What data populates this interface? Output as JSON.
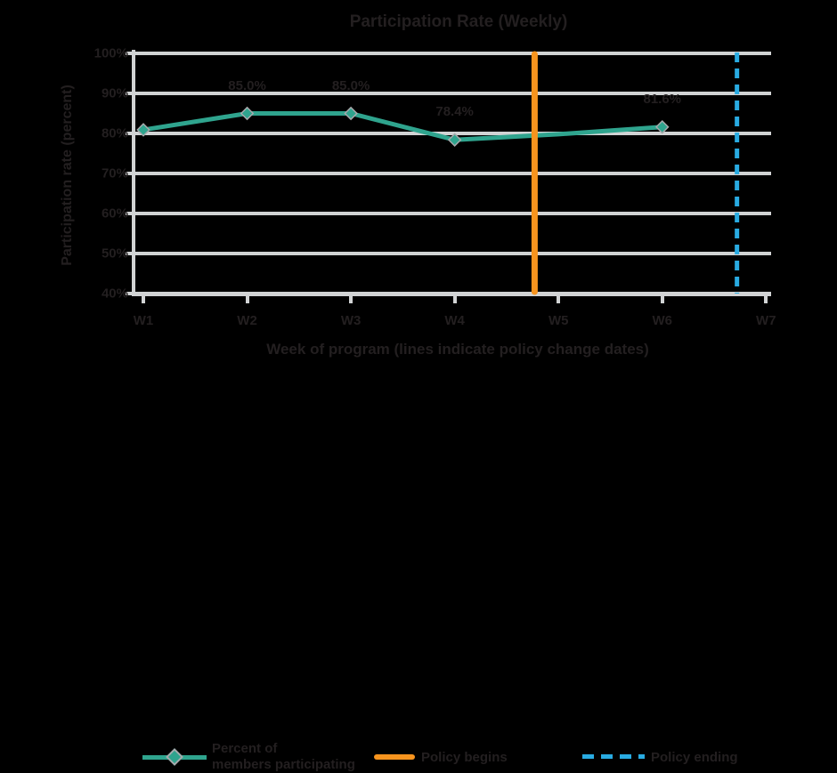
{
  "page": {
    "background": "#000000",
    "text_color": "#231F20"
  },
  "title": "Participation Rate (Weekly)",
  "axes": {
    "y_title": "Participation rate (percent)",
    "x_title": "Week of program (lines indicate policy change dates)",
    "y_tick_labels": [
      "100%",
      "90%",
      "80%",
      "70%",
      "60%",
      "50%",
      "40%"
    ],
    "x_tick_labels": [
      "W1",
      "W2",
      "W3",
      "W4",
      "W5",
      "W6",
      "W7"
    ]
  },
  "legend": {
    "series_label_line1": "Percent of",
    "series_label_line2": "members participating",
    "orange_label": "Policy begins",
    "blue_label": "Policy ending"
  },
  "colors": {
    "teal": "#2FA48E",
    "orange": "#F7941E",
    "blue": "#29ABE2",
    "grid": "#D1D3D4",
    "marker_outline": "#A7A9AC",
    "text": "#231F20"
  },
  "chart_data": {
    "type": "line",
    "title": "Participation Rate (Weekly)",
    "xlabel": "Week of program (lines indicate policy change dates)",
    "ylabel": "Participation rate (percent)",
    "x": [
      1,
      2,
      3,
      4,
      5,
      6
    ],
    "series": [
      {
        "name": "Percent of members participating",
        "color": "#2FA48E",
        "values": [
          80.9,
          85.0,
          85.0,
          78.4,
          79.8,
          81.6
        ],
        "point_labels": [
          "",
          "85.0%",
          "85.0%",
          "78.4%",
          "",
          "81.6%"
        ],
        "markers": [
          true,
          true,
          true,
          true,
          false,
          true
        ]
      }
    ],
    "vlines": [
      {
        "x": 4.77,
        "style": "solid",
        "color": "#F7941E",
        "label": "Policy begins"
      },
      {
        "x": 6.72,
        "style": "dashed",
        "color": "#29ABE2",
        "label": "Policy ending"
      }
    ],
    "xlim": [
      1,
      7
    ],
    "ylim": [
      40,
      100
    ],
    "y_tick_step": 10,
    "grid": "horizontal",
    "legend_position": "bottom"
  }
}
